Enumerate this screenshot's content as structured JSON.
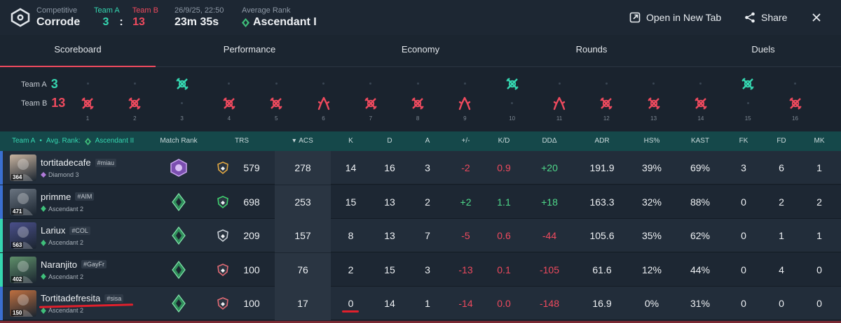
{
  "header": {
    "mode": "Competitive",
    "map": "Corrode",
    "teamA_label": "Team A",
    "teamB_label": "Team B",
    "teamA_score": "3",
    "score_sep": ":",
    "teamB_score": "13",
    "datetime": "26/9/25, 22:50",
    "duration": "23m 35s",
    "avg_rank_label": "Average Rank",
    "avg_rank": "Ascendant I",
    "open_new_tab": "Open in New Tab",
    "share": "Share"
  },
  "tabs": [
    "Scoreboard",
    "Performance",
    "Economy",
    "Rounds",
    "Duels"
  ],
  "active_tab": 0,
  "timeline": {
    "teamA_label": "Team A",
    "teamA_score": "3",
    "teamB_label": "Team B",
    "teamB_score": "13",
    "rounds": [
      {
        "num": "1",
        "winner": "B",
        "type": "elim"
      },
      {
        "num": "2",
        "winner": "B",
        "type": "elim"
      },
      {
        "num": "3",
        "winner": "A",
        "type": "elim"
      },
      {
        "num": "4",
        "winner": "B",
        "type": "elim"
      },
      {
        "num": "5",
        "winner": "B",
        "type": "elim"
      },
      {
        "num": "6",
        "winner": "B",
        "type": "defuse"
      },
      {
        "num": "7",
        "winner": "B",
        "type": "elim"
      },
      {
        "num": "8",
        "winner": "B",
        "type": "elim"
      },
      {
        "num": "9",
        "winner": "B",
        "type": "defuse"
      },
      {
        "num": "10",
        "winner": "A",
        "type": "elim"
      },
      {
        "num": "11",
        "winner": "B",
        "type": "defuse"
      },
      {
        "num": "12",
        "winner": "B",
        "type": "elim"
      },
      {
        "num": "13",
        "winner": "B",
        "type": "elim"
      },
      {
        "num": "14",
        "winner": "B",
        "type": "elim"
      },
      {
        "num": "15",
        "winner": "A",
        "type": "elim"
      },
      {
        "num": "16",
        "winner": "B",
        "type": "elim"
      }
    ]
  },
  "table": {
    "team_label": "Team A",
    "team_sep": "•",
    "avg_rank_label": "Avg. Rank:",
    "avg_rank": "Ascendant II",
    "columns": [
      "Match Rank",
      "TRS",
      "ACS",
      "K",
      "D",
      "A",
      "+/-",
      "K/D",
      "DDΔ",
      "ADR",
      "HS%",
      "KAST",
      "FK",
      "FD",
      "MK"
    ],
    "sort_indicator": "▾",
    "rows": [
      {
        "name": "tortitadecafe",
        "tag": "#miau",
        "rank": "Diamond 3",
        "level": "364",
        "trs": "579",
        "acs": "278",
        "k": "14",
        "d": "16",
        "a": "3",
        "pm": "-2",
        "kd": "0.9",
        "dd": "+20",
        "adr": "191.9",
        "hs": "39%",
        "kast": "69%",
        "fk": "3",
        "fd": "6",
        "mk": "1",
        "bar": "#3a6fd0",
        "avatar": "#c9b4a0",
        "mrank": "diamond",
        "trs_color": "#e0a742"
      },
      {
        "name": "primme",
        "tag": "#AIM",
        "rank": "Ascendant 2",
        "level": "471",
        "trs": "698",
        "acs": "253",
        "k": "15",
        "d": "13",
        "a": "2",
        "pm": "+2",
        "kd": "1.1",
        "dd": "+18",
        "adr": "163.3",
        "hs": "32%",
        "kast": "88%",
        "fk": "0",
        "fd": "2",
        "mk": "2",
        "bar": "#3a6fd0",
        "avatar": "#6a7480",
        "mrank": "ascendant",
        "trs_color": "#3fcf6e"
      },
      {
        "name": "Lariux",
        "tag": "#COL",
        "rank": "Ascendant 2",
        "level": "563",
        "trs": "209",
        "acs": "157",
        "k": "8",
        "d": "13",
        "a": "7",
        "pm": "-5",
        "kd": "0.6",
        "dd": "-44",
        "adr": "105.6",
        "hs": "35%",
        "kast": "62%",
        "fk": "0",
        "fd": "1",
        "mk": "1",
        "bar": "#35d6b0",
        "avatar": "#4a4f8a",
        "mrank": "ascendant",
        "trs_color": "#c5ccd3"
      },
      {
        "name": "Naranjito",
        "tag": "#GayFr",
        "rank": "Ascendant 2",
        "level": "402",
        "trs": "100",
        "acs": "76",
        "k": "2",
        "d": "15",
        "a": "3",
        "pm": "-13",
        "kd": "0.1",
        "dd": "-105",
        "adr": "61.6",
        "hs": "12%",
        "kast": "44%",
        "fk": "0",
        "fd": "4",
        "mk": "0",
        "bar": "#35d6b0",
        "avatar": "#5f8f6a",
        "mrank": "ascendant",
        "trs_color": "#e06a74"
      },
      {
        "name": "Tortitadefresita",
        "tag": "#sisa",
        "rank": "Ascendant 2",
        "level": "150",
        "trs": "100",
        "acs": "17",
        "k": "0",
        "d": "14",
        "a": "1",
        "pm": "-14",
        "kd": "0.0",
        "dd": "-148",
        "adr": "16.9",
        "hs": "0%",
        "kast": "31%",
        "fk": "0",
        "fd": "0",
        "mk": "0",
        "bar": "#3a6fd0",
        "avatar": "#c07040",
        "mrank": "ascendant",
        "trs_color": "#e06a74"
      }
    ]
  },
  "colors": {
    "teamA": "#35d6b0",
    "teamB": "#ef4a5e",
    "header_band": "#15484a",
    "positive": "#4fd98a",
    "negative": "#ef4a5e"
  }
}
